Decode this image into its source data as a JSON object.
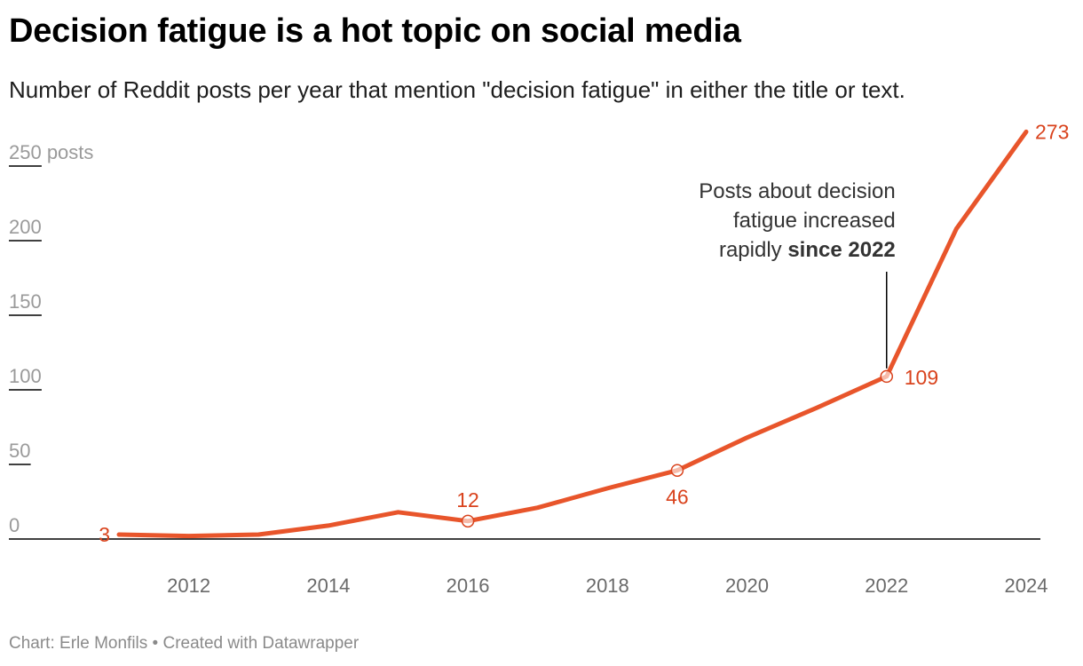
{
  "title": "Decision fatigue is a hot topic on social media",
  "subtitle": "Number of Reddit posts per year that mention \"decision fatigue\" in either the title or text.",
  "footer": "Chart: Erle Monfils • Created with Datawrapper",
  "colors": {
    "line": "#e8552b",
    "label": "#d9431d",
    "axis": "#000000"
  },
  "chart_data": {
    "type": "line",
    "title": "Decision fatigue is a hot topic on social media",
    "subtitle": "Number of Reddit posts per year that mention \"decision fatigue\" in either the title or text.",
    "xlabel": "",
    "ylabel": "",
    "x": [
      2011,
      2012,
      2013,
      2014,
      2015,
      2016,
      2017,
      2018,
      2019,
      2020,
      2021,
      2022,
      2023,
      2024
    ],
    "series": [
      {
        "values": [
          3,
          2,
          3,
          9,
          18,
          12,
          21,
          34,
          46,
          68,
          88,
          109,
          208,
          273
        ]
      }
    ],
    "xlim": [
      2011,
      2024
    ],
    "ylim": [
      0,
      250
    ],
    "y_ticks": [
      {
        "value": 0,
        "label": "0"
      },
      {
        "value": 50,
        "label": "50"
      },
      {
        "value": 100,
        "label": "100"
      },
      {
        "value": 150,
        "label": "150"
      },
      {
        "value": 200,
        "label": "200"
      },
      {
        "value": 250,
        "label": "250",
        "suffix": " posts"
      }
    ],
    "x_ticks": [
      {
        "value": 2012,
        "label": "2012"
      },
      {
        "value": 2014,
        "label": "2014"
      },
      {
        "value": 2016,
        "label": "2016"
      },
      {
        "value": 2018,
        "label": "2018"
      },
      {
        "value": 2020,
        "label": "2020"
      },
      {
        "value": 2022,
        "label": "2022"
      },
      {
        "value": 2024,
        "label": "2024"
      }
    ],
    "data_labels": [
      {
        "x": 2011,
        "value": 3,
        "text": "3",
        "position": "left",
        "marker": false
      },
      {
        "x": 2016,
        "value": 12,
        "text": "12",
        "position": "above",
        "marker": true
      },
      {
        "x": 2019,
        "value": 46,
        "text": "46",
        "position": "below",
        "marker": true
      },
      {
        "x": 2022,
        "value": 109,
        "text": "109",
        "position": "right",
        "marker": true
      },
      {
        "x": 2024,
        "value": 273,
        "text": "273",
        "position": "right",
        "marker": false
      }
    ],
    "annotation": {
      "x": 2022,
      "value": 109,
      "lines": [
        [
          {
            "text": "Posts about decision",
            "bold": false
          }
        ],
        [
          {
            "text": "fatigue increased",
            "bold": false
          }
        ],
        [
          {
            "text": "rapidly ",
            "bold": false
          },
          {
            "text": "since 2022",
            "bold": true
          }
        ]
      ]
    },
    "grid": false,
    "legend": "none"
  }
}
